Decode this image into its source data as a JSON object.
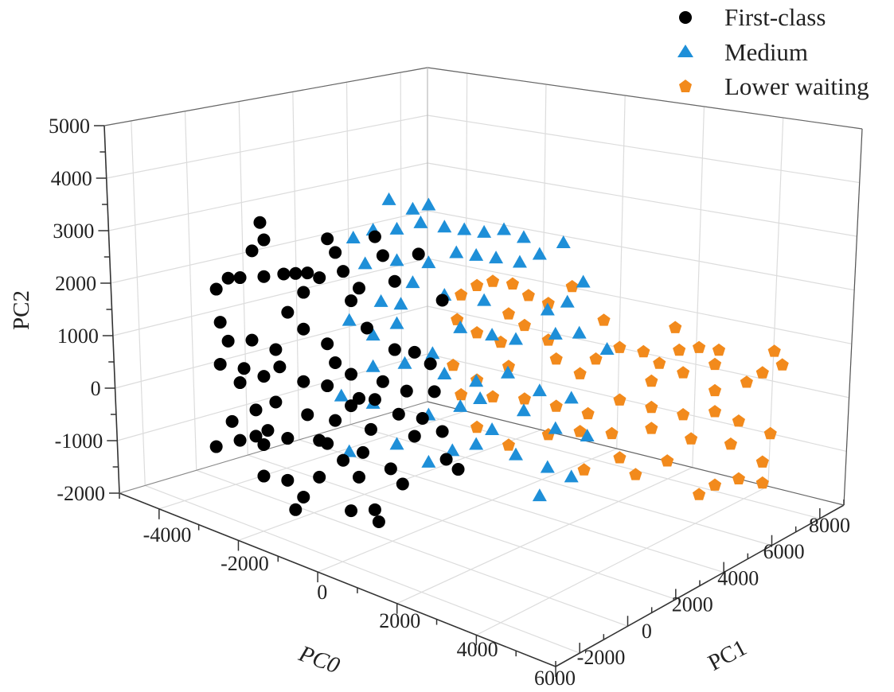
{
  "chart_data": {
    "type": "scatter",
    "projection": "3d",
    "grid": true,
    "legend_position": "top-right",
    "axes": {
      "x": {
        "label": "PC0",
        "range": [
          -5000,
          6000
        ],
        "ticks": [
          -4000,
          -2000,
          0,
          2000,
          4000,
          6000
        ]
      },
      "y": {
        "label": "PC1",
        "range": [
          -3000,
          9000
        ],
        "ticks": [
          -2000,
          0,
          2000,
          4000,
          6000,
          8000
        ]
      },
      "z": {
        "label": "PC2",
        "range": [
          -2000,
          5000
        ],
        "ticks": [
          -2000,
          -1000,
          0,
          1000,
          2000,
          3000,
          4000,
          5000
        ]
      }
    },
    "series": [
      {
        "name": "First-class",
        "marker": "circle",
        "color": "#000000",
        "points": [
          [
            -3400,
            0,
            3200
          ],
          [
            -3300,
            0,
            2900
          ],
          [
            -3600,
            0,
            2600
          ],
          [
            -4500,
            0,
            1600
          ],
          [
            -4200,
            0,
            1900
          ],
          [
            -3900,
            0,
            2000
          ],
          [
            -3300,
            0,
            2200
          ],
          [
            -2800,
            0,
            2400
          ],
          [
            -2500,
            0,
            2500
          ],
          [
            -2200,
            0,
            2600
          ],
          [
            -1700,
            0,
            3400
          ],
          [
            -1500,
            0,
            3200
          ],
          [
            -1900,
            0,
            2600
          ],
          [
            -1300,
            0,
            2900
          ],
          [
            -900,
            0,
            2700
          ],
          [
            -500,
            0,
            3800
          ],
          [
            -300,
            0,
            3500
          ],
          [
            0,
            0,
            3100
          ],
          [
            600,
            0,
            3800
          ],
          [
            1200,
            0,
            3100
          ],
          [
            -4400,
            0,
            1000
          ],
          [
            -4200,
            0,
            700
          ],
          [
            -3600,
            0,
            900
          ],
          [
            -3000,
            0,
            900
          ],
          [
            -2700,
            0,
            1700
          ],
          [
            -2300,
            0,
            1500
          ],
          [
            -1700,
            0,
            1400
          ],
          [
            -1100,
            0,
            2400
          ],
          [
            -700,
            0,
            2000
          ],
          [
            0,
            0,
            1800
          ],
          [
            500,
            0,
            1900
          ],
          [
            900,
            0,
            1800
          ],
          [
            -4400,
            0,
            200
          ],
          [
            -3900,
            0,
            0
          ],
          [
            -3300,
            0,
            300
          ],
          [
            -2900,
            0,
            600
          ],
          [
            -2300,
            0,
            500
          ],
          [
            -1700,
            0,
            600
          ],
          [
            -1100,
            0,
            1000
          ],
          [
            -300,
            0,
            1100
          ],
          [
            300,
            0,
            1100
          ],
          [
            1000,
            0,
            1300
          ],
          [
            -4100,
            0,
            -800
          ],
          [
            -3500,
            0,
            -400
          ],
          [
            -3200,
            0,
            -700
          ],
          [
            -2700,
            0,
            -700
          ],
          [
            -2200,
            0,
            -100
          ],
          [
            -1700,
            0,
            -500
          ],
          [
            -1100,
            0,
            400
          ],
          [
            -600,
            0,
            100
          ],
          [
            100,
            0,
            600
          ],
          [
            700,
            0,
            700
          ],
          [
            -3300,
            0,
            -1600
          ],
          [
            -2700,
            0,
            -1500
          ],
          [
            -2300,
            0,
            -1700
          ],
          [
            -1900,
            0,
            -1200
          ],
          [
            -1300,
            0,
            -700
          ],
          [
            -900,
            0,
            -900
          ],
          [
            -500,
            0,
            -1400
          ],
          [
            200,
            0,
            -700
          ],
          [
            1300,
            0,
            100
          ],
          [
            1600,
            0,
            0
          ],
          [
            -400,
            0,
            -1600
          ],
          [
            -1100,
            0,
            -1600
          ],
          [
            -2500,
            0,
            -2000
          ],
          [
            -4500,
            0,
            -1400
          ],
          [
            -3900,
            0,
            -1100
          ],
          [
            -3500,
            0,
            -900
          ],
          [
            -3300,
            0,
            -1000
          ],
          [
            -1900,
            0,
            -500
          ],
          [
            -1500,
            0,
            0
          ],
          [
            -800,
            0,
            -400
          ],
          [
            -100,
            0,
            -500
          ],
          [
            500,
            0,
            300
          ],
          [
            1200,
            0,
            600
          ],
          [
            -900,
            0,
            600
          ],
          [
            -500,
            0,
            700
          ],
          [
            -3800,
            0,
            300
          ],
          [
            -3000,
            0,
            -100
          ],
          [
            -1500,
            0,
            1100
          ],
          [
            -2300,
            0,
            2200
          ]
        ]
      },
      {
        "name": "Medium",
        "marker": "triangle",
        "color": "#1e8fd8",
        "points": [
          [
            -1700,
            2400,
            3800
          ],
          [
            -1100,
            2400,
            3800
          ],
          [
            -700,
            2400,
            4000
          ],
          [
            -1500,
            2400,
            3300
          ],
          [
            -900,
            2400,
            3600
          ],
          [
            -2600,
            2400,
            2800
          ],
          [
            -2100,
            2400,
            3100
          ],
          [
            -300,
            2400,
            3700
          ],
          [
            200,
            2400,
            3800
          ],
          [
            700,
            2400,
            3900
          ],
          [
            1200,
            2400,
            4100
          ],
          [
            1700,
            2400,
            4100
          ],
          [
            2700,
            2400,
            4300
          ],
          [
            0,
            2400,
            3300
          ],
          [
            500,
            2400,
            3400
          ],
          [
            1000,
            2400,
            3500
          ],
          [
            1600,
            2400,
            3600
          ],
          [
            2100,
            2400,
            3900
          ],
          [
            -700,
            2400,
            2900
          ],
          [
            -1500,
            2400,
            2700
          ],
          [
            -2300,
            2400,
            2400
          ],
          [
            3200,
            2400,
            3700
          ],
          [
            2800,
            2400,
            3200
          ],
          [
            2300,
            2400,
            2900
          ],
          [
            700,
            2400,
            2600
          ],
          [
            -300,
            2400,
            2400
          ],
          [
            -1100,
            2400,
            2400
          ],
          [
            -1900,
            2400,
            1800
          ],
          [
            -2700,
            2400,
            1200
          ],
          [
            -2100,
            2400,
            1100
          ],
          [
            -1500,
            2400,
            1500
          ],
          [
            100,
            2400,
            1900
          ],
          [
            900,
            2400,
            2000
          ],
          [
            1500,
            2400,
            2100
          ],
          [
            2500,
            2400,
            2500
          ],
          [
            3100,
            2400,
            2700
          ],
          [
            3800,
            2400,
            2600
          ],
          [
            -2100,
            2400,
            500
          ],
          [
            -1300,
            2400,
            800
          ],
          [
            -300,
            2400,
            900
          ],
          [
            500,
            2400,
            1000
          ],
          [
            1300,
            2400,
            1400
          ],
          [
            2100,
            2400,
            1300
          ],
          [
            2900,
            2400,
            1400
          ],
          [
            -2900,
            2400,
            -300
          ],
          [
            -2100,
            2400,
            -200
          ],
          [
            -700,
            2400,
            0
          ],
          [
            100,
            2400,
            400
          ],
          [
            900,
            2400,
            200
          ],
          [
            1700,
            2400,
            800
          ],
          [
            2500,
            2400,
            700
          ],
          [
            3300,
            2400,
            800
          ],
          [
            -2700,
            2400,
            -1300
          ],
          [
            -1500,
            2400,
            -800
          ],
          [
            -700,
            2400,
            -900
          ],
          [
            500,
            2400,
            -200
          ],
          [
            1500,
            2400,
            -100
          ],
          [
            2300,
            2400,
            -100
          ],
          [
            2900,
            2400,
            -100
          ],
          [
            2100,
            2400,
            -700
          ],
          [
            -100,
            2400,
            -500
          ],
          [
            -1400,
            2400,
            1900
          ],
          [
            -600,
            2400,
            1200
          ],
          [
            600,
            2400,
            700
          ]
        ]
      },
      {
        "name": "Lower waiting",
        "marker": "pentagon",
        "color": "#f28a1c",
        "points": [
          [
            -2600,
            6600,
            1100
          ],
          [
            -2200,
            6600,
            1400
          ],
          [
            -1800,
            6600,
            1600
          ],
          [
            -1300,
            6600,
            1700
          ],
          [
            -900,
            6600,
            1600
          ],
          [
            -400,
            6600,
            1600
          ],
          [
            200,
            6600,
            2100
          ],
          [
            1000,
            6600,
            1700
          ],
          [
            2800,
            6600,
            2100
          ],
          [
            2900,
            6600,
            1700
          ],
          [
            3400,
            6600,
            1900
          ],
          [
            3900,
            6600,
            2000
          ],
          [
            5300,
            6600,
            2400
          ],
          [
            5500,
            6600,
            2200
          ],
          [
            -2700,
            6600,
            600
          ],
          [
            -2200,
            6600,
            500
          ],
          [
            -1600,
            6600,
            500
          ],
          [
            -1000,
            6600,
            1000
          ],
          [
            -400,
            6600,
            900
          ],
          [
            -1400,
            6600,
            100
          ],
          [
            -2200,
            6600,
            -400
          ],
          [
            -2800,
            6600,
            -300
          ],
          [
            -200,
            6600,
            600
          ],
          [
            400,
            6600,
            500
          ],
          [
            800,
            6600,
            900
          ],
          [
            1400,
            6600,
            1300
          ],
          [
            2000,
            6600,
            1400
          ],
          [
            2400,
            6600,
            1300
          ],
          [
            3000,
            6600,
            1300
          ],
          [
            3800,
            6600,
            1700
          ],
          [
            4600,
            6600,
            1600
          ],
          [
            5000,
            6600,
            1900
          ],
          [
            -2600,
            6600,
            -800
          ],
          [
            -1800,
            6600,
            -600
          ],
          [
            -1000,
            6600,
            -400
          ],
          [
            -200,
            6600,
            -300
          ],
          [
            600,
            6600,
            -200
          ],
          [
            1400,
            6600,
            300
          ],
          [
            2200,
            6600,
            400
          ],
          [
            3000,
            6600,
            500
          ],
          [
            3800,
            6600,
            800
          ],
          [
            4400,
            6600,
            800
          ],
          [
            5200,
            6600,
            800
          ],
          [
            -2200,
            6600,
            -1300
          ],
          [
            -1400,
            6600,
            -1400
          ],
          [
            -400,
            6600,
            -900
          ],
          [
            400,
            6600,
            -600
          ],
          [
            1200,
            6600,
            -400
          ],
          [
            2200,
            6600,
            0
          ],
          [
            3200,
            6600,
            100
          ],
          [
            4200,
            6600,
            300
          ],
          [
            5000,
            6600,
            200
          ],
          [
            1400,
            6600,
            -800
          ],
          [
            1800,
            6600,
            -1000
          ],
          [
            2600,
            6600,
            -500
          ],
          [
            3400,
            6600,
            -900
          ],
          [
            3800,
            6600,
            -600
          ],
          [
            4400,
            6600,
            -300
          ],
          [
            5000,
            6600,
            -200
          ],
          [
            500,
            6600,
            -1300
          ],
          [
            -1400,
            6600,
            1100
          ],
          [
            2200,
            6600,
            900
          ],
          [
            3800,
            6600,
            1200
          ]
        ]
      }
    ]
  }
}
